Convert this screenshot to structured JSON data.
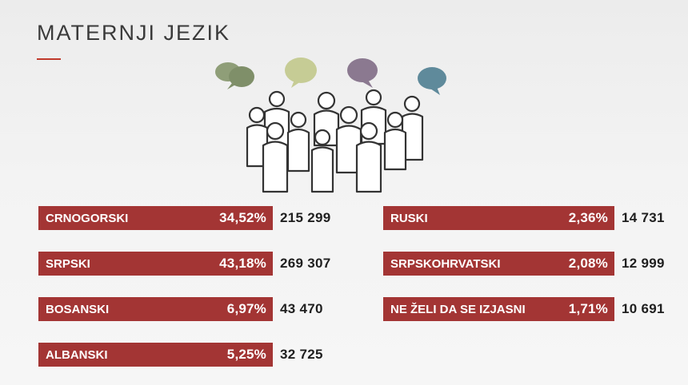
{
  "title": "MATERNJI JEZIK",
  "colors": {
    "bar": "#a33534",
    "accent_rule": "#c0392b",
    "bubble_green": "#8f9e78",
    "bubble_olive": "#c6cc95",
    "bubble_purple": "#8b7990",
    "bubble_teal": "#5f8a9b"
  },
  "illustration": {
    "icon": "people-group-with-speech-bubbles-icon"
  },
  "left_languages": [
    {
      "name": "CRNOGORSKI",
      "percent": "34,52%",
      "count": "215 299"
    },
    {
      "name": "SRPSKI",
      "percent": "43,18%",
      "count": "269 307"
    },
    {
      "name": "BOSANSKI",
      "percent": "6,97%",
      "count": "43 470"
    },
    {
      "name": "ALBANSKI",
      "percent": "5,25%",
      "count": "32 725"
    }
  ],
  "right_languages": [
    {
      "name": "RUSKI",
      "percent": "2,36%",
      "count": "14 731"
    },
    {
      "name": "SRPSKOHRVATSKI",
      "percent": "2,08%",
      "count": "12 999"
    },
    {
      "name": "NE ŽELI DA SE IZJASNI",
      "percent": "1,71%",
      "count": "10 691"
    }
  ]
}
